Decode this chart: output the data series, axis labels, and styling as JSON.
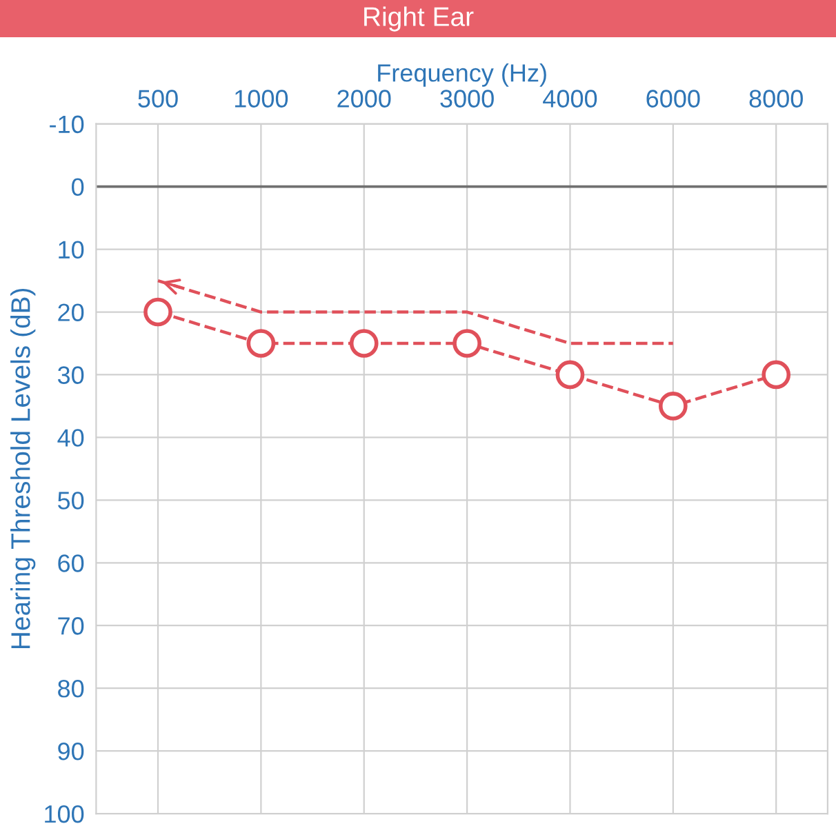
{
  "chart_data": {
    "type": "line",
    "title": "Right Ear",
    "xlabel": "Frequency (Hz)",
    "ylabel": "Hearing Threshold Levels (dB)",
    "categories": [
      "500",
      "1000",
      "2000",
      "3000",
      "4000",
      "6000",
      "8000"
    ],
    "series": [
      {
        "color": "#e0505a",
        "values": [
          20,
          25,
          25,
          25,
          30,
          35,
          30
        ],
        "marker": "circle",
        "line_style": "dashed"
      },
      {
        "color": "#e0505a",
        "values": [
          15,
          20,
          20,
          20,
          25,
          25,
          null
        ],
        "marker": "none",
        "line_style": "dashed"
      }
    ],
    "ylim": [
      100,
      -10
    ],
    "yticks": [
      -10,
      0,
      10,
      20,
      30,
      40,
      50,
      60,
      70,
      80,
      90,
      100
    ],
    "ref_lines": [
      {
        "axis": "y",
        "value": 0,
        "color": "#707070"
      }
    ],
    "grid": true,
    "legend": false
  }
}
